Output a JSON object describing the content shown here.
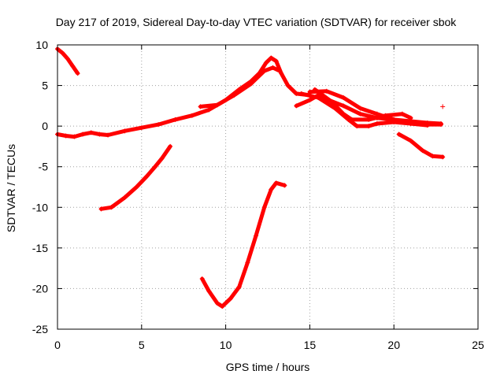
{
  "chart_data": {
    "type": "scatter",
    "title": "Day 217 of 2019, Sidereal Day-to-day VTEC variation (SDTVAR) for receiver sbok",
    "xlabel": "GPS time / hours",
    "ylabel": "SDTVAR / TECUs",
    "xlim": [
      0,
      25
    ],
    "ylim": [
      -25,
      10
    ],
    "xticks": [
      0,
      5,
      10,
      15,
      20,
      25
    ],
    "yticks": [
      -25,
      -20,
      -15,
      -10,
      -5,
      0,
      5,
      10
    ],
    "xtick_labels": [
      "0",
      "5",
      "10",
      "15",
      "20",
      "25"
    ],
    "ytick_labels": [
      "-25",
      "-20",
      "-15",
      "-10",
      "-5",
      "0",
      "5",
      "10"
    ],
    "grid": true,
    "marker": "+",
    "color": "#ff0000",
    "series": [
      {
        "name": "arc-top-left",
        "points": [
          [
            0.0,
            9.5
          ],
          [
            0.3,
            9.0
          ],
          [
            0.6,
            8.3
          ],
          [
            0.9,
            7.4
          ],
          [
            1.2,
            6.5
          ]
        ]
      },
      {
        "name": "arc-main-rise",
        "points": [
          [
            0.0,
            -1.0
          ],
          [
            0.5,
            -1.2
          ],
          [
            1.0,
            -1.3
          ],
          [
            1.5,
            -1.0
          ],
          [
            2.0,
            -0.8
          ],
          [
            2.5,
            -1.0
          ],
          [
            3.0,
            -1.1
          ],
          [
            4.0,
            -0.6
          ],
          [
            5.0,
            -0.2
          ],
          [
            6.0,
            0.2
          ],
          [
            7.0,
            0.8
          ],
          [
            8.0,
            1.3
          ],
          [
            9.0,
            2.0
          ],
          [
            10.0,
            3.2
          ],
          [
            10.8,
            4.5
          ],
          [
            11.5,
            5.5
          ],
          [
            12.0,
            6.5
          ],
          [
            12.4,
            7.8
          ],
          [
            12.7,
            8.4
          ],
          [
            13.0,
            8.0
          ],
          [
            13.3,
            6.5
          ],
          [
            13.7,
            5.0
          ],
          [
            14.2,
            4.0
          ],
          [
            15.0,
            3.8
          ]
        ]
      },
      {
        "name": "arc-main-upper",
        "points": [
          [
            8.5,
            2.4
          ],
          [
            9.5,
            2.6
          ],
          [
            10.5,
            3.8
          ],
          [
            11.5,
            5.2
          ],
          [
            12.3,
            6.8
          ],
          [
            12.8,
            7.2
          ],
          [
            13.2,
            6.8
          ]
        ]
      },
      {
        "name": "arc-right-a",
        "points": [
          [
            14.2,
            2.5
          ],
          [
            15.0,
            3.2
          ],
          [
            15.5,
            3.8
          ],
          [
            16.0,
            3.3
          ],
          [
            17.0,
            2.5
          ],
          [
            18.0,
            1.5
          ],
          [
            19.0,
            1.0
          ],
          [
            20.0,
            0.8
          ],
          [
            21.0,
            0.6
          ],
          [
            22.0,
            0.4
          ],
          [
            22.8,
            0.3
          ]
        ]
      },
      {
        "name": "arc-right-b",
        "points": [
          [
            15.0,
            4.2
          ],
          [
            16.0,
            4.3
          ],
          [
            17.0,
            3.5
          ],
          [
            18.0,
            2.2
          ],
          [
            19.0,
            1.5
          ],
          [
            20.0,
            0.8
          ],
          [
            21.0,
            0.3
          ],
          [
            22.0,
            0.2
          ],
          [
            22.8,
            0.2
          ]
        ]
      },
      {
        "name": "arc-right-c",
        "points": [
          [
            14.5,
            4.0
          ],
          [
            15.5,
            3.5
          ],
          [
            16.5,
            2.2
          ],
          [
            17.3,
            0.8
          ],
          [
            17.8,
            0.0
          ],
          [
            18.5,
            0.0
          ],
          [
            19.0,
            0.3
          ],
          [
            20.0,
            0.5
          ],
          [
            21.0,
            0.3
          ],
          [
            22.0,
            0.1
          ]
        ]
      },
      {
        "name": "arc-right-d",
        "points": [
          [
            15.3,
            4.5
          ],
          [
            16.3,
            3.0
          ],
          [
            17.0,
            1.5
          ],
          [
            17.5,
            0.8
          ],
          [
            18.5,
            0.8
          ],
          [
            19.5,
            1.3
          ],
          [
            20.5,
            1.5
          ],
          [
            21.0,
            1.0
          ]
        ]
      },
      {
        "name": "arc-right-low",
        "points": [
          [
            20.3,
            -1.0
          ],
          [
            21.0,
            -1.8
          ],
          [
            21.7,
            -3.0
          ],
          [
            22.3,
            -3.7
          ],
          [
            22.9,
            -3.8
          ]
        ]
      },
      {
        "name": "arc-right-point",
        "points": [
          [
            22.9,
            2.4
          ]
        ]
      },
      {
        "name": "arc-mid-left",
        "points": [
          [
            2.6,
            -10.2
          ],
          [
            3.2,
            -10.0
          ],
          [
            4.0,
            -8.8
          ],
          [
            4.7,
            -7.5
          ],
          [
            5.3,
            -6.2
          ],
          [
            5.8,
            -5.0
          ],
          [
            6.2,
            -4.0
          ],
          [
            6.7,
            -2.5
          ]
        ]
      },
      {
        "name": "arc-deep",
        "points": [
          [
            8.6,
            -18.8
          ],
          [
            9.0,
            -20.3
          ],
          [
            9.5,
            -21.8
          ],
          [
            9.8,
            -22.2
          ],
          [
            10.3,
            -21.2
          ],
          [
            10.8,
            -19.8
          ],
          [
            11.3,
            -16.8
          ],
          [
            11.8,
            -13.5
          ],
          [
            12.3,
            -10.0
          ],
          [
            12.7,
            -7.8
          ],
          [
            13.0,
            -7.0
          ],
          [
            13.5,
            -7.3
          ]
        ]
      }
    ]
  }
}
